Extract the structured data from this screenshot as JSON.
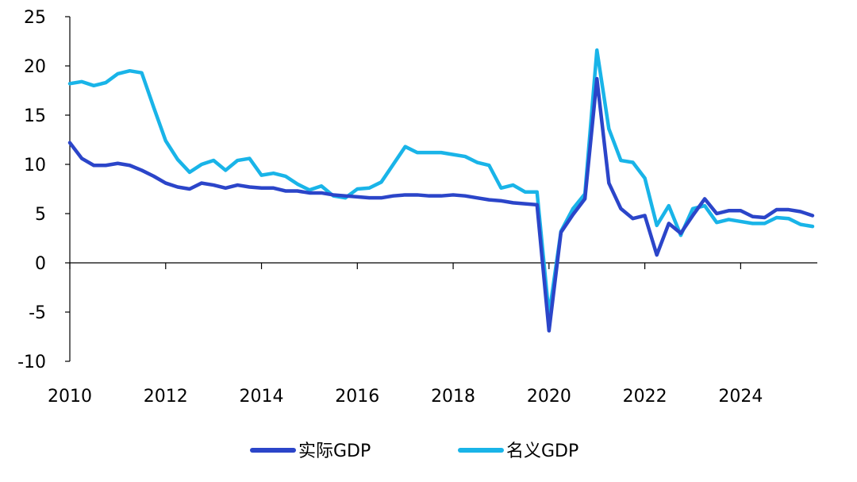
{
  "chart_data": {
    "type": "line",
    "title": "",
    "xlabel": "",
    "ylabel": "",
    "xlim": [
      2010.0,
      2025.6
    ],
    "ylim": [
      -10,
      25
    ],
    "y_ticks": [
      25,
      20,
      15,
      10,
      5,
      0,
      -5,
      -10
    ],
    "y_tick_labels": [
      "25",
      "20",
      "15",
      "10",
      "5",
      "0",
      "-5",
      "-10"
    ],
    "x_ticks": [
      2010,
      2012,
      2014,
      2016,
      2018,
      2020,
      2022,
      2024
    ],
    "x_tick_labels": [
      "2010",
      "2012",
      "2014",
      "2016",
      "2018",
      "2020",
      "2022",
      "2024"
    ],
    "grid": false,
    "legend_position": "bottom",
    "series": [
      {
        "name": "实际GDP",
        "color": "#2b45c9",
        "points": [
          [
            2010.0,
            12.2
          ],
          [
            2010.25,
            10.6
          ],
          [
            2010.5,
            9.9
          ],
          [
            2010.75,
            9.9
          ],
          [
            2011.0,
            10.1
          ],
          [
            2011.25,
            9.9
          ],
          [
            2011.5,
            9.4
          ],
          [
            2011.75,
            8.8
          ],
          [
            2012.0,
            8.1
          ],
          [
            2012.25,
            7.7
          ],
          [
            2012.5,
            7.5
          ],
          [
            2012.75,
            8.1
          ],
          [
            2013.0,
            7.9
          ],
          [
            2013.25,
            7.6
          ],
          [
            2013.5,
            7.9
          ],
          [
            2013.75,
            7.7
          ],
          [
            2014.0,
            7.6
          ],
          [
            2014.25,
            7.6
          ],
          [
            2014.5,
            7.3
          ],
          [
            2014.75,
            7.3
          ],
          [
            2015.0,
            7.1
          ],
          [
            2015.25,
            7.1
          ],
          [
            2015.5,
            6.9
          ],
          [
            2015.75,
            6.8
          ],
          [
            2016.0,
            6.7
          ],
          [
            2016.25,
            6.6
          ],
          [
            2016.5,
            6.6
          ],
          [
            2016.75,
            6.8
          ],
          [
            2017.0,
            6.9
          ],
          [
            2017.25,
            6.9
          ],
          [
            2017.5,
            6.8
          ],
          [
            2017.75,
            6.8
          ],
          [
            2018.0,
            6.9
          ],
          [
            2018.25,
            6.8
          ],
          [
            2018.5,
            6.6
          ],
          [
            2018.75,
            6.4
          ],
          [
            2019.0,
            6.3
          ],
          [
            2019.25,
            6.1
          ],
          [
            2019.5,
            6.0
          ],
          [
            2019.75,
            5.9
          ],
          [
            2020.0,
            -6.9
          ],
          [
            2020.25,
            3.1
          ],
          [
            2020.5,
            4.9
          ],
          [
            2020.75,
            6.5
          ],
          [
            2021.0,
            18.7
          ],
          [
            2021.25,
            8.1
          ],
          [
            2021.5,
            5.5
          ],
          [
            2021.75,
            4.5
          ],
          [
            2022.0,
            4.8
          ],
          [
            2022.25,
            0.8
          ],
          [
            2022.5,
            4.0
          ],
          [
            2022.75,
            3.0
          ],
          [
            2023.0,
            4.8
          ],
          [
            2023.25,
            6.5
          ],
          [
            2023.5,
            5.0
          ],
          [
            2023.75,
            5.3
          ],
          [
            2024.0,
            5.3
          ],
          [
            2024.25,
            4.7
          ],
          [
            2024.5,
            4.6
          ],
          [
            2024.75,
            5.4
          ],
          [
            2025.0,
            5.4
          ],
          [
            2025.25,
            5.2
          ],
          [
            2025.5,
            4.8
          ]
        ]
      },
      {
        "name": "名义GDP",
        "color": "#19b4e8",
        "points": [
          [
            2010.0,
            18.2
          ],
          [
            2010.25,
            18.4
          ],
          [
            2010.5,
            18.0
          ],
          [
            2010.75,
            18.3
          ],
          [
            2011.0,
            19.2
          ],
          [
            2011.25,
            19.5
          ],
          [
            2011.5,
            19.3
          ],
          [
            2011.75,
            15.8
          ],
          [
            2012.0,
            12.4
          ],
          [
            2012.25,
            10.5
          ],
          [
            2012.5,
            9.2
          ],
          [
            2012.75,
            10.0
          ],
          [
            2013.0,
            10.4
          ],
          [
            2013.25,
            9.4
          ],
          [
            2013.5,
            10.4
          ],
          [
            2013.75,
            10.6
          ],
          [
            2014.0,
            8.9
          ],
          [
            2014.25,
            9.1
          ],
          [
            2014.5,
            8.8
          ],
          [
            2014.75,
            8.0
          ],
          [
            2015.0,
            7.4
          ],
          [
            2015.25,
            7.8
          ],
          [
            2015.5,
            6.8
          ],
          [
            2015.75,
            6.6
          ],
          [
            2016.0,
            7.5
          ],
          [
            2016.25,
            7.6
          ],
          [
            2016.5,
            8.2
          ],
          [
            2016.75,
            10.0
          ],
          [
            2017.0,
            11.8
          ],
          [
            2017.25,
            11.2
          ],
          [
            2017.5,
            11.2
          ],
          [
            2017.75,
            11.2
          ],
          [
            2018.0,
            11.0
          ],
          [
            2018.25,
            10.8
          ],
          [
            2018.5,
            10.2
          ],
          [
            2018.75,
            9.9
          ],
          [
            2019.0,
            7.6
          ],
          [
            2019.25,
            7.9
          ],
          [
            2019.5,
            7.2
          ],
          [
            2019.75,
            7.2
          ],
          [
            2020.0,
            -5.3
          ],
          [
            2020.25,
            3.2
          ],
          [
            2020.5,
            5.5
          ],
          [
            2020.75,
            7.0
          ],
          [
            2021.0,
            21.6
          ],
          [
            2021.25,
            13.6
          ],
          [
            2021.5,
            10.4
          ],
          [
            2021.75,
            10.2
          ],
          [
            2022.0,
            8.6
          ],
          [
            2022.25,
            3.8
          ],
          [
            2022.5,
            5.8
          ],
          [
            2022.75,
            2.8
          ],
          [
            2023.0,
            5.5
          ],
          [
            2023.25,
            5.8
          ],
          [
            2023.5,
            4.1
          ],
          [
            2023.75,
            4.4
          ],
          [
            2024.0,
            4.2
          ],
          [
            2024.25,
            4.0
          ],
          [
            2024.5,
            4.0
          ],
          [
            2024.75,
            4.6
          ],
          [
            2025.0,
            4.5
          ],
          [
            2025.25,
            3.9
          ],
          [
            2025.5,
            3.7
          ]
        ]
      }
    ]
  }
}
